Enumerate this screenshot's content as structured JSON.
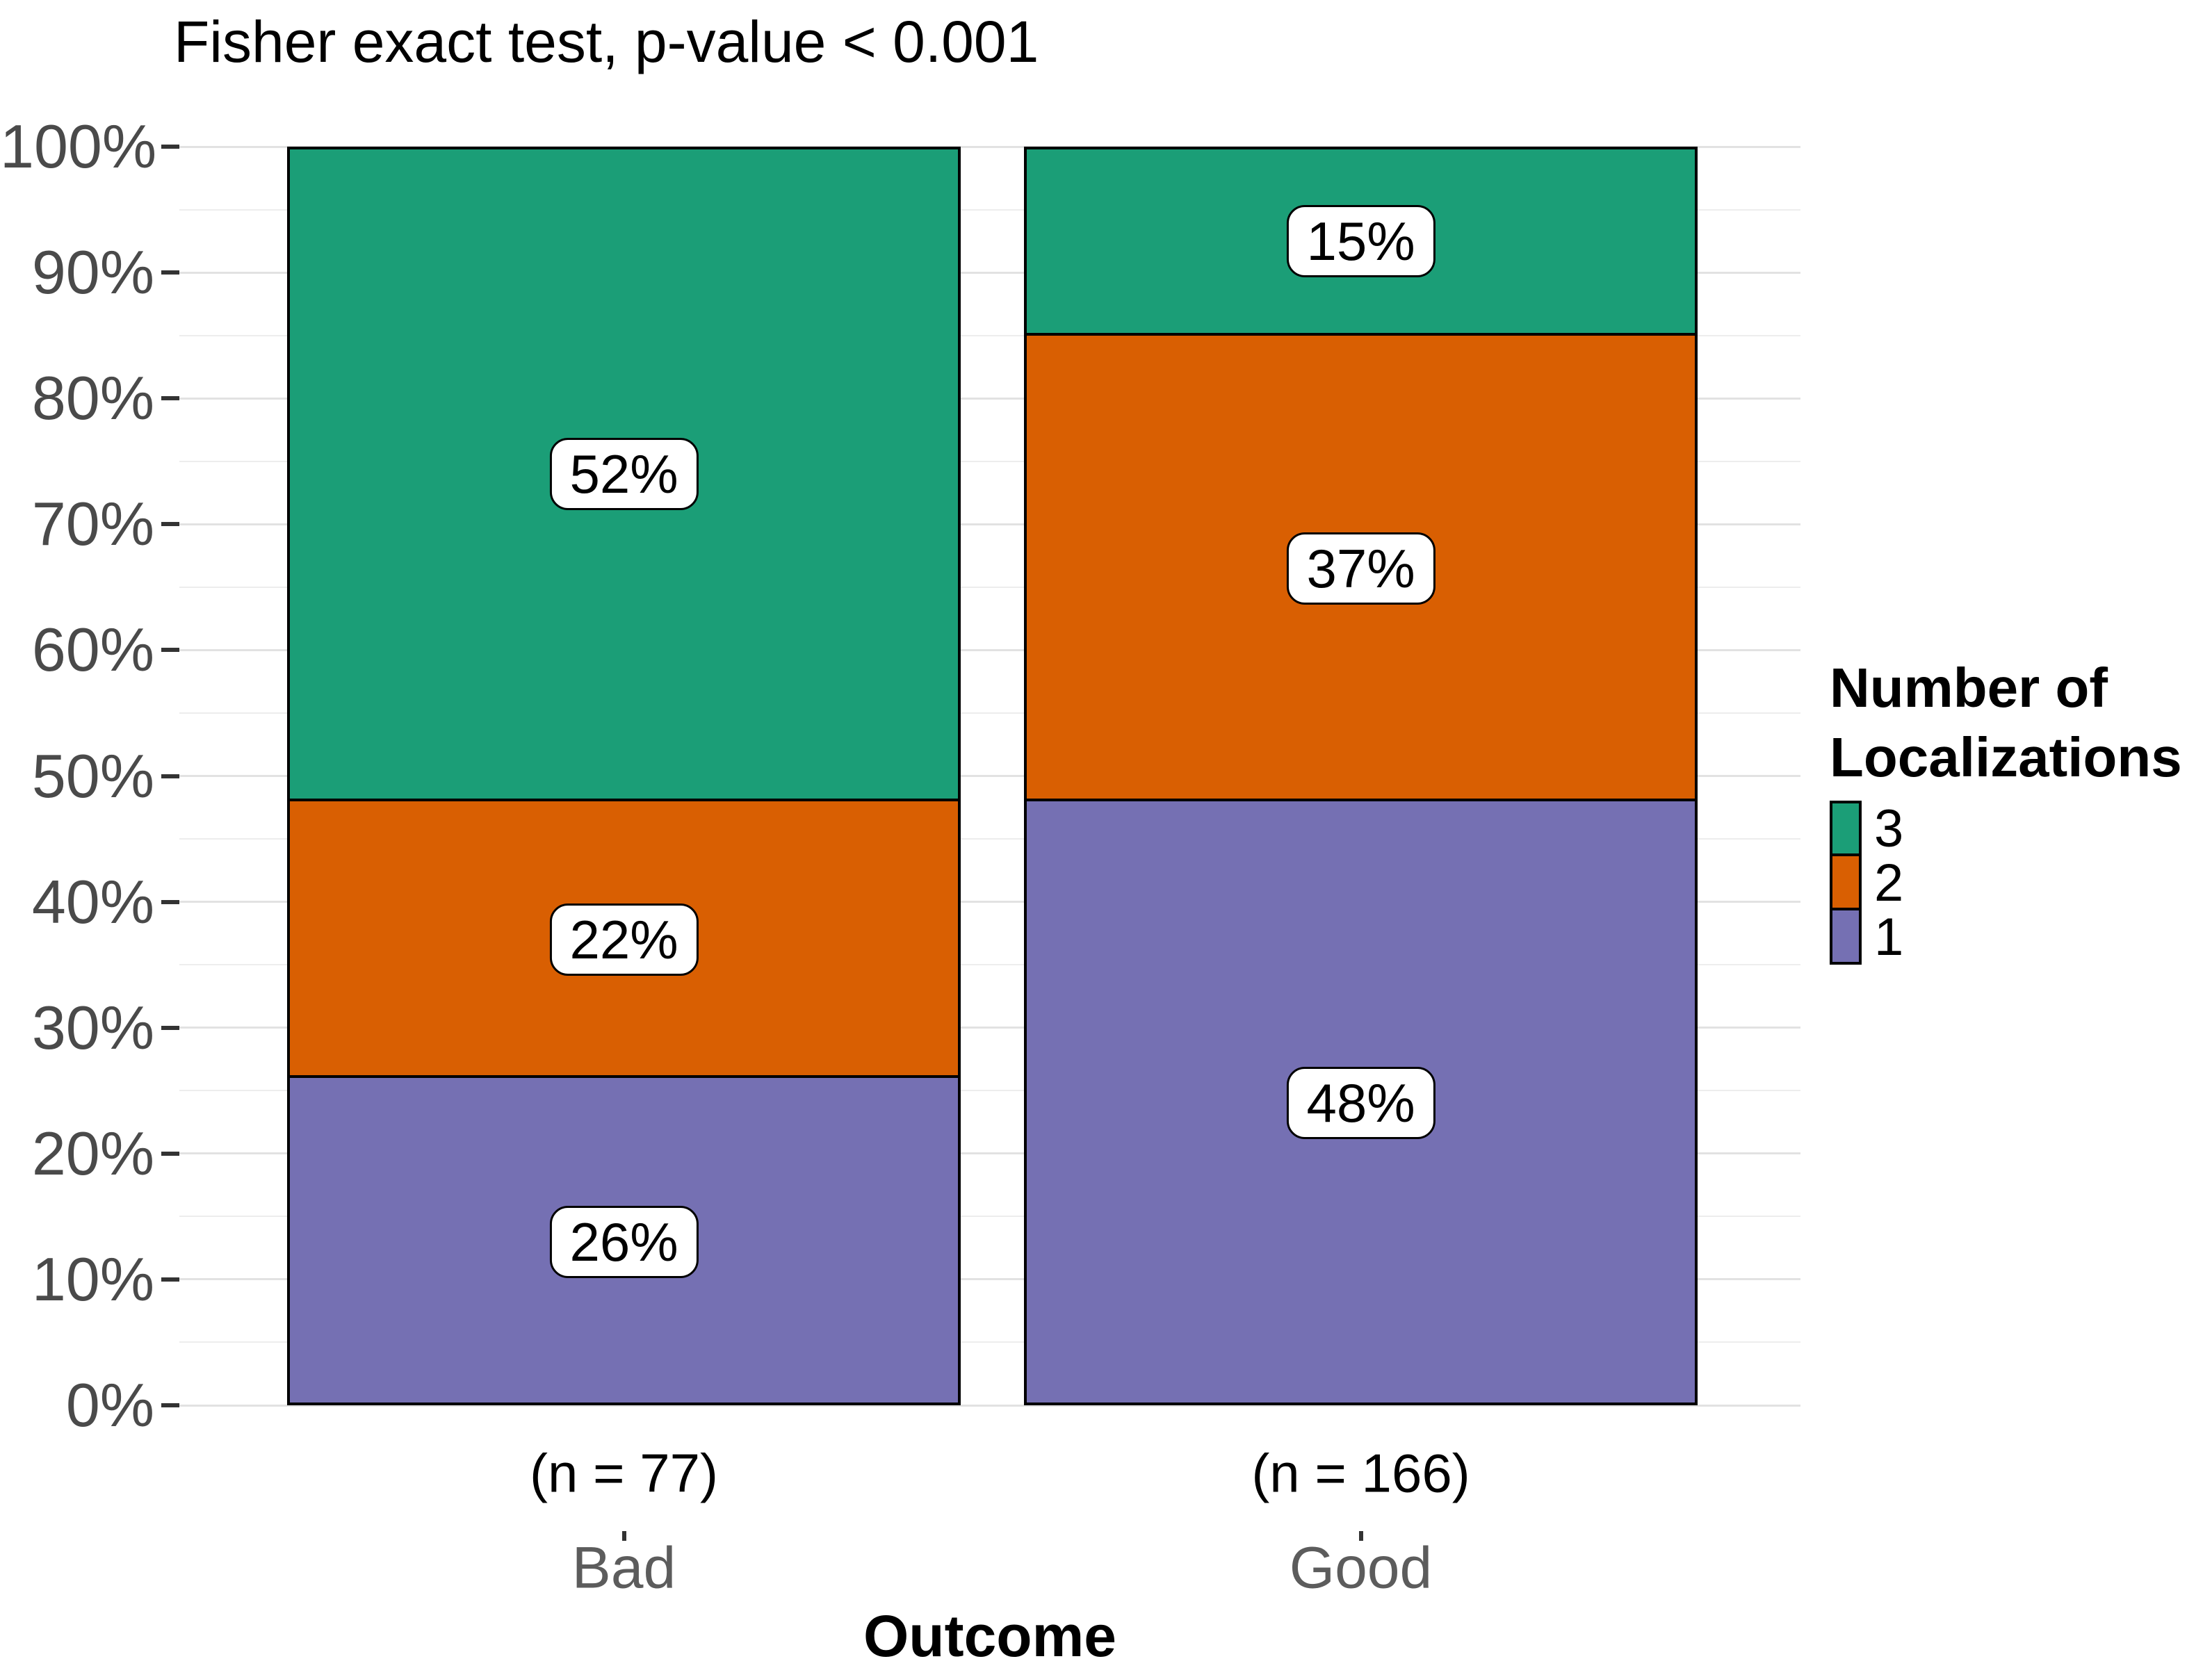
{
  "title": "Fisher exact test, p-value < 0.001",
  "chart_data": {
    "type": "bar",
    "subtype": "stacked-percent-columns",
    "title": "Fisher exact test, p-value < 0.001",
    "xlabel": "Outcome",
    "ylabel": "",
    "ylim": [
      0,
      100
    ],
    "grid": "major and minor horizontal gridlines, light gray, white background",
    "categories": [
      "Bad",
      "Good"
    ],
    "category_n_labels": [
      "(n = 77)",
      "(n = 166)"
    ],
    "y_ticks": [
      "0%",
      "10%",
      "20%",
      "30%",
      "40%",
      "50%",
      "60%",
      "70%",
      "80%",
      "90%",
      "100%"
    ],
    "series": [
      {
        "name": "3",
        "color": "#1B9E77",
        "values": [
          52,
          15
        ]
      },
      {
        "name": "2",
        "color": "#D95F02",
        "values": [
          22,
          37
        ]
      },
      {
        "name": "1",
        "color": "#7570B3",
        "values": [
          26,
          48
        ]
      }
    ],
    "value_label_suffix": "%",
    "legend": {
      "title": "Number of Localizations",
      "position": "right",
      "entries": [
        "3",
        "2",
        "1"
      ]
    }
  },
  "colors": {
    "green_3": "#1B9E77",
    "orange_2": "#D95F02",
    "purple_1": "#7570B3",
    "axis_text": "#4a4a4a",
    "category_text": "#5c5c5c",
    "gridline_major": "#e2e2e2",
    "gridline_minor": "#ededed",
    "segment_border": "#000000",
    "label_box_bg": "#ffffff"
  }
}
